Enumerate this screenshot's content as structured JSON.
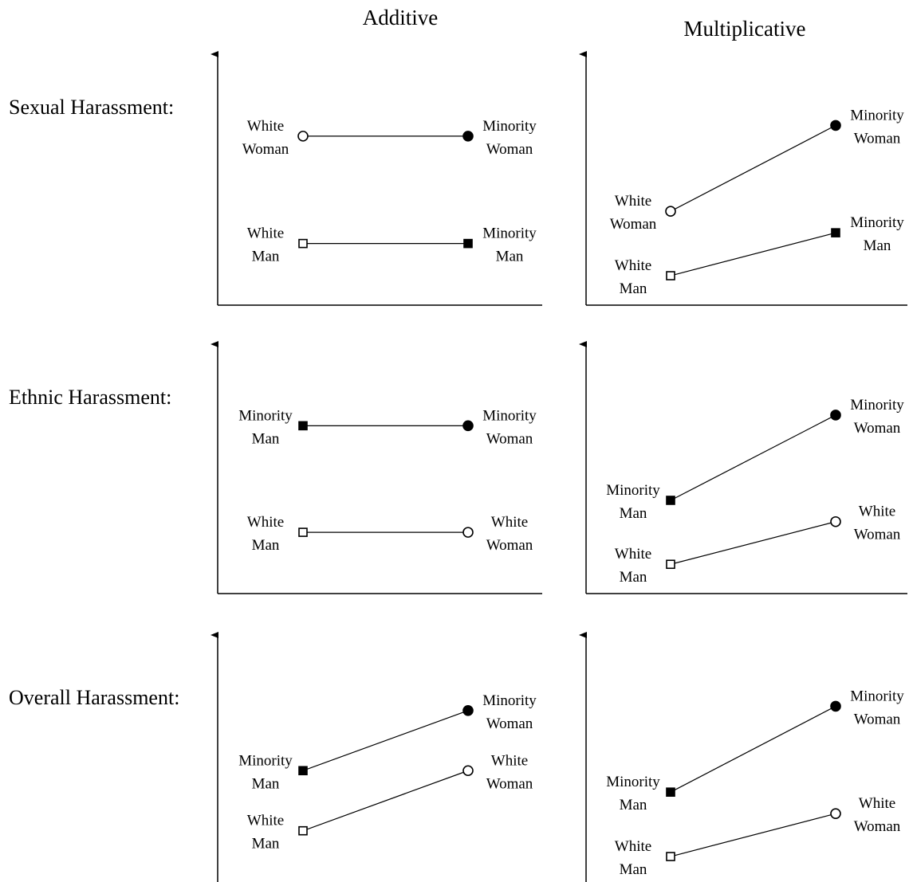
{
  "columns": [
    "Additive",
    "Multiplicative"
  ],
  "rows": [
    "Sexual Harassment:",
    "Ethnic Harassment:",
    "Overall Harassment:"
  ],
  "panels": [
    {
      "row": "Sexual Harassment:",
      "column": "Additive",
      "lines": [
        {
          "points": [
            {
              "y": 75,
              "marker": "open-circle",
              "label": [
                "White",
                "Woman"
              ]
            },
            {
              "y": 75,
              "marker": "filled-circle",
              "label": [
                "Minority",
                "Woman"
              ]
            }
          ]
        },
        {
          "points": [
            {
              "y": 25,
              "marker": "open-square",
              "label": [
                "White",
                "Man"
              ]
            },
            {
              "y": 25,
              "marker": "filled-square",
              "label": [
                "Minority",
                "Man"
              ]
            }
          ]
        }
      ]
    },
    {
      "row": "Sexual Harassment:",
      "column": "Multiplicative",
      "lines": [
        {
          "points": [
            {
              "y": 40,
              "marker": "open-circle",
              "label": [
                "White",
                "Woman"
              ]
            },
            {
              "y": 80,
              "marker": "filled-circle",
              "label": [
                "Minority",
                "Woman"
              ]
            }
          ]
        },
        {
          "points": [
            {
              "y": 10,
              "marker": "open-square",
              "label": [
                "White",
                "Man"
              ]
            },
            {
              "y": 30,
              "marker": "filled-square",
              "label": [
                "Minority",
                "Man"
              ]
            }
          ]
        }
      ]
    },
    {
      "row": "Ethnic Harassment:",
      "column": "Additive",
      "lines": [
        {
          "points": [
            {
              "y": 75,
              "marker": "filled-square",
              "label": [
                "Minority",
                "Man"
              ]
            },
            {
              "y": 75,
              "marker": "filled-circle",
              "label": [
                "Minority",
                "Woman"
              ]
            }
          ]
        },
        {
          "points": [
            {
              "y": 25,
              "marker": "open-square",
              "label": [
                "White",
                "Man"
              ]
            },
            {
              "y": 25,
              "marker": "open-circle",
              "label": [
                "White",
                "Woman"
              ]
            }
          ]
        }
      ]
    },
    {
      "row": "Ethnic Harassment:",
      "column": "Multiplicative",
      "lines": [
        {
          "points": [
            {
              "y": 40,
              "marker": "filled-square",
              "label": [
                "Minority",
                "Man"
              ]
            },
            {
              "y": 80,
              "marker": "filled-circle",
              "label": [
                "Minority",
                "Woman"
              ]
            }
          ]
        },
        {
          "points": [
            {
              "y": 10,
              "marker": "open-square",
              "label": [
                "White",
                "Man"
              ]
            },
            {
              "y": 30,
              "marker": "open-circle",
              "label": [
                "White",
                "Woman"
              ]
            }
          ]
        }
      ]
    },
    {
      "row": "Overall Harassment:",
      "column": "Additive",
      "lines": [
        {
          "points": [
            {
              "y": 50,
              "marker": "filled-square",
              "label": [
                "Minority",
                "Man"
              ]
            },
            {
              "y": 78,
              "marker": "filled-circle",
              "label": [
                "Minority",
                "Woman"
              ]
            }
          ]
        },
        {
          "points": [
            {
              "y": 22,
              "marker": "open-square",
              "label": [
                "White",
                "Man"
              ]
            },
            {
              "y": 50,
              "marker": "open-circle",
              "label": [
                "White",
                "Woman"
              ]
            }
          ]
        }
      ]
    },
    {
      "row": "Overall Harassment:",
      "column": "Multiplicative",
      "lines": [
        {
          "points": [
            {
              "y": 40,
              "marker": "filled-square",
              "label": [
                "Minority",
                "Man"
              ]
            },
            {
              "y": 80,
              "marker": "filled-circle",
              "label": [
                "Minority",
                "Woman"
              ]
            }
          ]
        },
        {
          "points": [
            {
              "y": 10,
              "marker": "open-square",
              "label": [
                "White",
                "Man"
              ]
            },
            {
              "y": 30,
              "marker": "open-circle",
              "label": [
                "White",
                "Woman"
              ]
            }
          ]
        }
      ]
    }
  ]
}
